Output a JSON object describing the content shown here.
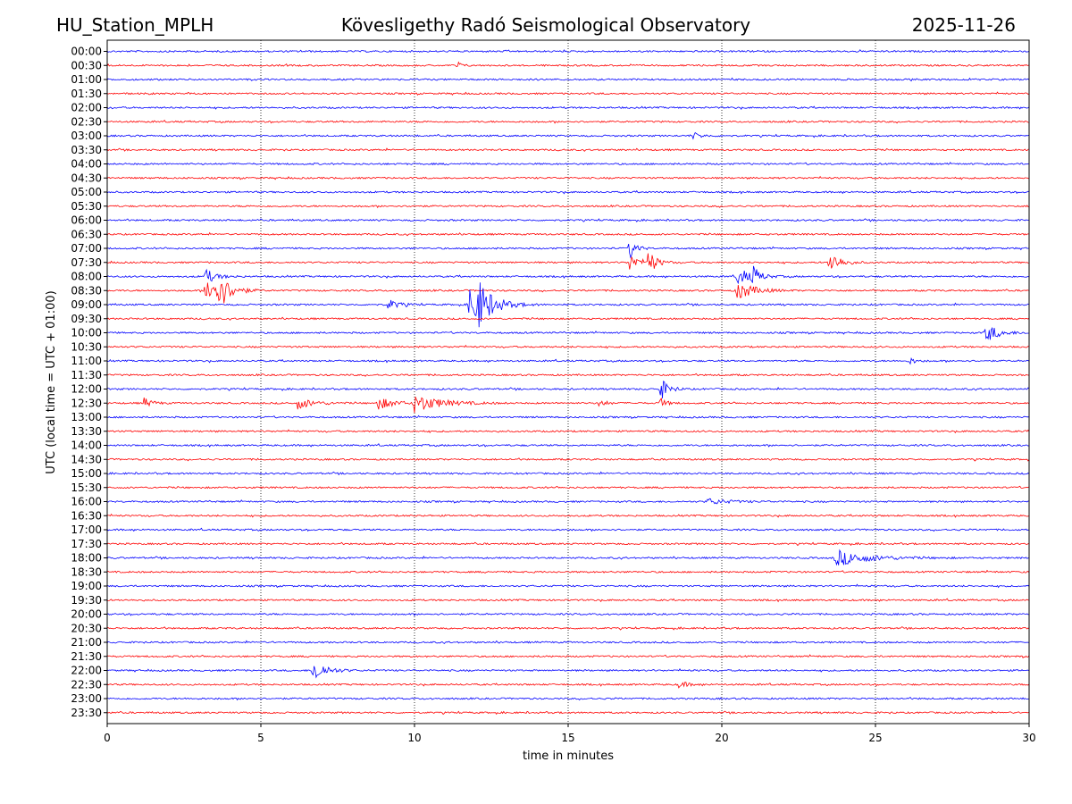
{
  "header": {
    "station": "HU_Station_MPLH",
    "observatory": "Kövesligethy Radó Seismological Observatory",
    "date": "2025-11-26"
  },
  "chart_data": {
    "type": "line",
    "title": "Kövesligethy Radó Seismological Observatory",
    "xlabel": "time in minutes",
    "ylabel": "UTC (local time = UTC + 01:00)",
    "xlim": [
      0,
      30
    ],
    "xticks": [
      0,
      5,
      10,
      15,
      20,
      25,
      30
    ],
    "grid": "vertical dotted at x ticks",
    "colors": [
      "#0000ff",
      "#ff0000"
    ],
    "rows": [
      "00:00",
      "00:30",
      "01:00",
      "01:30",
      "02:00",
      "02:30",
      "03:00",
      "03:30",
      "04:00",
      "04:30",
      "05:00",
      "05:30",
      "06:00",
      "06:30",
      "07:00",
      "07:30",
      "08:00",
      "08:30",
      "09:00",
      "09:30",
      "10:00",
      "10:30",
      "11:00",
      "11:30",
      "12:00",
      "12:30",
      "13:00",
      "13:30",
      "14:00",
      "14:30",
      "15:00",
      "15:30",
      "16:00",
      "16:30",
      "17:00",
      "17:30",
      "18:00",
      "18:30",
      "19:00",
      "19:30",
      "20:00",
      "20:30",
      "21:00",
      "21:30",
      "22:00",
      "22:30",
      "23:00",
      "23:30"
    ],
    "events": [
      {
        "row": "00:30",
        "minute": 11.4,
        "amp": 0.6,
        "dur": 0.2
      },
      {
        "row": "03:00",
        "minute": 19.0,
        "amp": 0.7,
        "dur": 0.4
      },
      {
        "row": "07:00",
        "minute": 17.0,
        "amp": 1.8,
        "dur": 0.3
      },
      {
        "row": "07:30",
        "minute": 17.0,
        "amp": 1.5,
        "dur": 0.4
      },
      {
        "row": "07:30",
        "minute": 17.6,
        "amp": 2.0,
        "dur": 0.4
      },
      {
        "row": "07:30",
        "minute": 23.5,
        "amp": 2.0,
        "dur": 0.5
      },
      {
        "row": "08:00",
        "minute": 3.2,
        "amp": 1.2,
        "dur": 0.5
      },
      {
        "row": "08:00",
        "minute": 20.5,
        "amp": 1.4,
        "dur": 0.7
      },
      {
        "row": "08:00",
        "minute": 21.0,
        "amp": 1.6,
        "dur": 0.3
      },
      {
        "row": "08:30",
        "minute": 3.2,
        "amp": 2.2,
        "dur": 0.8
      },
      {
        "row": "08:30",
        "minute": 3.6,
        "amp": 2.6,
        "dur": 0.5
      },
      {
        "row": "08:30",
        "minute": 20.5,
        "amp": 1.6,
        "dur": 0.8
      },
      {
        "row": "09:00",
        "minute": 9.1,
        "amp": 1.0,
        "dur": 0.5
      },
      {
        "row": "09:00",
        "minute": 11.8,
        "amp": 3.5,
        "dur": 0.9
      },
      {
        "row": "09:00",
        "minute": 12.1,
        "amp": 2.0,
        "dur": 0.6
      },
      {
        "row": "10:00",
        "minute": 28.6,
        "amp": 1.6,
        "dur": 0.6
      },
      {
        "row": "11:00",
        "minute": 26.1,
        "amp": 0.6,
        "dur": 0.3
      },
      {
        "row": "12:00",
        "minute": 18.0,
        "amp": 1.8,
        "dur": 0.4
      },
      {
        "row": "12:30",
        "minute": 1.2,
        "amp": 0.8,
        "dur": 0.4
      },
      {
        "row": "12:30",
        "minute": 6.2,
        "amp": 0.9,
        "dur": 0.8
      },
      {
        "row": "12:30",
        "minute": 8.8,
        "amp": 1.0,
        "dur": 0.8
      },
      {
        "row": "12:30",
        "minute": 10.0,
        "amp": 1.4,
        "dur": 1.3
      },
      {
        "row": "12:30",
        "minute": 16.0,
        "amp": 0.7,
        "dur": 0.3
      },
      {
        "row": "12:30",
        "minute": 18.0,
        "amp": 0.8,
        "dur": 0.3
      },
      {
        "row": "16:00",
        "minute": 19.5,
        "amp": 0.5,
        "dur": 1.0
      },
      {
        "row": "18:00",
        "minute": 23.7,
        "amp": 1.3,
        "dur": 1.6
      },
      {
        "row": "22:00",
        "minute": 6.7,
        "amp": 2.0,
        "dur": 0.6
      },
      {
        "row": "22:30",
        "minute": 18.6,
        "amp": 0.6,
        "dur": 0.4
      }
    ]
  }
}
